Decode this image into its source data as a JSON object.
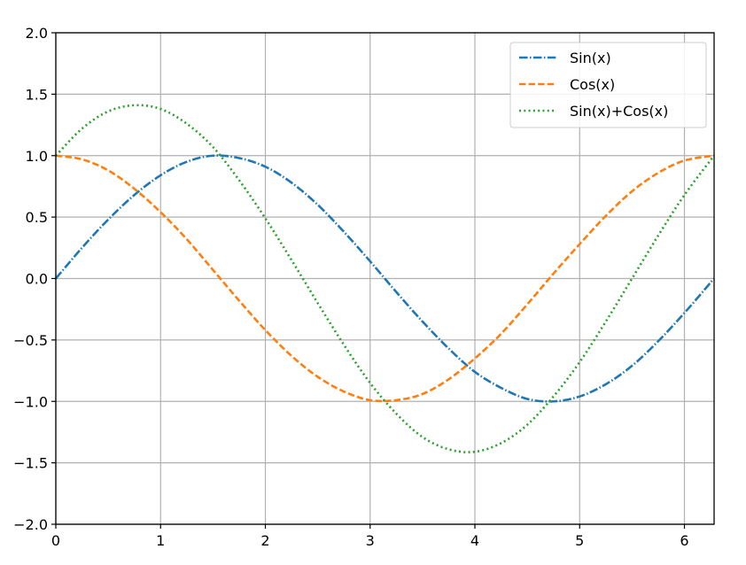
{
  "chart_data": {
    "type": "line",
    "title": "",
    "xlabel": "",
    "ylabel": "",
    "xlim": [
      0,
      6.283185307
    ],
    "ylim": [
      -2.0,
      2.0
    ],
    "grid": true,
    "legend_position": "top-right",
    "x_ticks": [
      0,
      1,
      2,
      3,
      4,
      5,
      6
    ],
    "x_tick_labels": [
      "0",
      "1",
      "2",
      "3",
      "4",
      "5",
      "6"
    ],
    "y_ticks": [
      2.0,
      1.5,
      1.0,
      0.5,
      0.0,
      -0.5,
      -1.0,
      -1.5,
      -2.0
    ],
    "y_tick_labels": [
      "2.0",
      "1.5",
      "1.0",
      "0.5",
      "0.0",
      "−0.5",
      "−1.0",
      "−1.5",
      "−2.0"
    ],
    "x": [
      0,
      0.25,
      0.5,
      0.75,
      1.0,
      1.25,
      1.5,
      1.75,
      2.0,
      2.25,
      2.5,
      2.75,
      3.0,
      3.25,
      3.5,
      3.75,
      4.0,
      4.25,
      4.5,
      4.75,
      5.0,
      5.25,
      5.5,
      5.75,
      6.0,
      6.283
    ],
    "series": [
      {
        "name": "Sin(x)",
        "color": "#1f77b4",
        "line_style": "dashdot",
        "values": [
          0.0,
          0.25,
          0.48,
          0.68,
          0.84,
          0.95,
          1.0,
          0.98,
          0.91,
          0.78,
          0.6,
          0.38,
          0.14,
          -0.11,
          -0.35,
          -0.57,
          -0.76,
          -0.89,
          -0.98,
          -1.0,
          -0.96,
          -0.86,
          -0.71,
          -0.51,
          -0.28,
          0.0
        ]
      },
      {
        "name": "Cos(x)",
        "color": "#ff7f0e",
        "line_style": "dashed",
        "values": [
          1.0,
          0.97,
          0.88,
          0.73,
          0.54,
          0.32,
          0.07,
          -0.18,
          -0.42,
          -0.63,
          -0.8,
          -0.92,
          -0.99,
          -0.99,
          -0.94,
          -0.82,
          -0.65,
          -0.45,
          -0.21,
          0.04,
          0.28,
          0.51,
          0.71,
          0.86,
          0.96,
          1.0
        ]
      },
      {
        "name": "Sin(x)+Cos(x)",
        "color": "#2ca02c",
        "line_style": "dotted",
        "values": [
          1.0,
          1.22,
          1.36,
          1.41,
          1.38,
          1.26,
          1.07,
          0.8,
          0.49,
          0.15,
          -0.2,
          -0.54,
          -0.85,
          -1.1,
          -1.29,
          -1.39,
          -1.41,
          -1.34,
          -1.19,
          -0.96,
          -0.68,
          -0.35,
          0.0,
          0.35,
          0.68,
          1.0
        ]
      }
    ]
  }
}
